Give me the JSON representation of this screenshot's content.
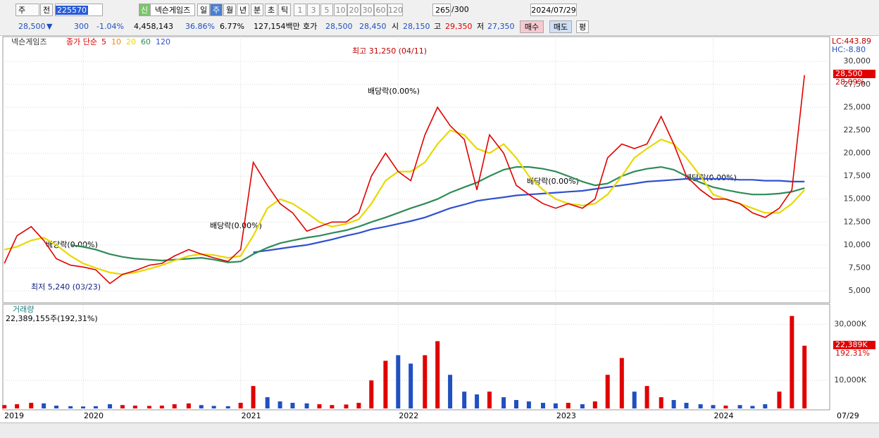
{
  "toolbar": {
    "row1": [
      "주",
      "전",
      "225570",
      "신",
      "넥슨게임즈",
      "일",
      "주",
      "월",
      "년",
      "분",
      "초",
      "틱",
      "1",
      "3",
      "5",
      "10",
      "20",
      "30",
      "60",
      "120",
      "265",
      "/300",
      "2024/07/29"
    ],
    "row2": [
      "28,500",
      "▼",
      "300",
      "-1.04%",
      "4,458,143",
      "36.86%",
      "6.77%",
      "127,154백만",
      "호가",
      "28,500",
      "28,450",
      "시",
      "28,150",
      "고",
      "29,350",
      "저",
      "27,350",
      "매수",
      "매도",
      "평"
    ]
  },
  "chart_data": {
    "type": "line",
    "name": "넥슨게임즈",
    "legend_title": "종가 단순",
    "legend": [
      {
        "name": "5",
        "color": "#e00000"
      },
      {
        "name": "10",
        "color": "#f08a00"
      },
      {
        "name": "20",
        "color": "#e8d800"
      },
      {
        "name": "60",
        "color": "#2e8b57"
      },
      {
        "name": "120",
        "color": "#3050d0"
      }
    ],
    "x": [
      2019.5,
      2019.58,
      2019.67,
      2019.75,
      2019.83,
      2019.92,
      2020.0,
      2020.08,
      2020.17,
      2020.25,
      2020.33,
      2020.42,
      2020.5,
      2020.58,
      2020.67,
      2020.75,
      2020.83,
      2020.92,
      2021.0,
      2021.08,
      2021.17,
      2021.25,
      2021.33,
      2021.42,
      2021.5,
      2021.58,
      2021.67,
      2021.75,
      2021.83,
      2021.92,
      2022.0,
      2022.08,
      2022.17,
      2022.25,
      2022.33,
      2022.42,
      2022.5,
      2022.58,
      2022.67,
      2022.75,
      2022.83,
      2022.92,
      2023.0,
      2023.08,
      2023.17,
      2023.25,
      2023.33,
      2023.42,
      2023.5,
      2023.58,
      2023.67,
      2023.75,
      2023.83,
      2023.92,
      2024.0,
      2024.08,
      2024.17,
      2024.25,
      2024.33,
      2024.42,
      2024.5,
      2024.58
    ],
    "series": [
      {
        "name": "종가",
        "color": "#e00000",
        "values": [
          8000,
          11000,
          12000,
          10500,
          8500,
          7800,
          7600,
          7300,
          5800,
          6800,
          7200,
          7800,
          8000,
          8800,
          9500,
          9000,
          8600,
          8200,
          9500,
          19000,
          16500,
          14500,
          13500,
          11500,
          12000,
          12500,
          12500,
          13500,
          17500,
          20000,
          18000,
          17000,
          22000,
          25000,
          23000,
          21500,
          16000,
          22000,
          20000,
          16500,
          15500,
          14500,
          14000,
          14500,
          14000,
          15000,
          19500,
          21000,
          20500,
          21000,
          24000,
          21000,
          17500,
          16000,
          15000,
          15000,
          14500,
          13500,
          13000,
          14000,
          16000,
          28500
        ]
      },
      {
        "name": "20",
        "color": "#e8d800",
        "values": [
          9500,
          9800,
          10500,
          10800,
          10000,
          8800,
          8000,
          7500,
          7000,
          6800,
          7000,
          7400,
          7800,
          8300,
          8800,
          9000,
          8900,
          8600,
          8800,
          11000,
          14000,
          15000,
          14500,
          13500,
          12500,
          12000,
          12300,
          12800,
          14500,
          17000,
          18000,
          18000,
          19000,
          21000,
          22500,
          22000,
          20500,
          20000,
          21000,
          19500,
          17500,
          16000,
          15000,
          14500,
          14300,
          14500,
          15500,
          17500,
          19500,
          20500,
          21500,
          21000,
          19500,
          17500,
          15500,
          15000,
          14500,
          14000,
          13500,
          13500,
          14500,
          16000
        ]
      },
      {
        "name": "60",
        "color": "#2e8b57",
        "values": [
          null,
          null,
          null,
          null,
          null,
          10000,
          9800,
          9500,
          9000,
          8700,
          8500,
          8400,
          8300,
          8400,
          8500,
          8600,
          8400,
          8100,
          8200,
          9000,
          9700,
          10200,
          10500,
          10800,
          11000,
          11300,
          11600,
          12000,
          12500,
          13000,
          13500,
          14000,
          14500,
          15000,
          15700,
          16300,
          16800,
          17500,
          18200,
          18500,
          18500,
          18300,
          18000,
          17500,
          16900,
          16500,
          16700,
          17500,
          18000,
          18300,
          18500,
          18200,
          17500,
          16800,
          16300,
          16000,
          15700,
          15500,
          15500,
          15600,
          15800,
          16200
        ]
      },
      {
        "name": "120",
        "color": "#3050d0",
        "values": [
          null,
          null,
          null,
          null,
          null,
          null,
          null,
          null,
          null,
          null,
          null,
          null,
          null,
          null,
          null,
          null,
          null,
          null,
          null,
          9200,
          9400,
          9600,
          9800,
          10000,
          10300,
          10600,
          11000,
          11300,
          11700,
          12000,
          12300,
          12600,
          13000,
          13500,
          14000,
          14400,
          14800,
          15000,
          15200,
          15400,
          15500,
          15600,
          15700,
          15800,
          15900,
          16100,
          16300,
          16500,
          16700,
          16900,
          17000,
          17100,
          17200,
          17200,
          17200,
          17200,
          17100,
          17100,
          17000,
          17000,
          16900,
          16900
        ]
      }
    ],
    "ylim": [
      3700,
      32700
    ],
    "yticks": [
      {
        "value": 5000,
        "label": "5,000"
      },
      {
        "value": 7500,
        "label": "7,500"
      },
      {
        "value": 10000,
        "label": "10,000"
      },
      {
        "value": 12500,
        "label": "12,500"
      },
      {
        "value": 15000,
        "label": "15,000"
      },
      {
        "value": 17500,
        "label": "17,500"
      },
      {
        "value": 20000,
        "label": "20,000"
      },
      {
        "value": 22500,
        "label": "22,500"
      },
      {
        "value": 25000,
        "label": "25,000"
      },
      {
        "value": 27500,
        "label": "27,500"
      },
      {
        "value": 30000,
        "label": "30,000"
      }
    ],
    "xlim": [
      2019.49,
      2024.74
    ],
    "xticks": [
      2020,
      2021,
      2022,
      2023,
      2024
    ],
    "first_x_label": "2019",
    "last_x_label": "07/29",
    "volume": {
      "title": "거래량",
      "summary": "22,389,155주(192,31%)",
      "color_up": "#e00000",
      "color_down": "#2050c0",
      "values": [
        1200,
        1500,
        2000,
        1800,
        1000,
        800,
        700,
        800,
        1500,
        1200,
        1000,
        900,
        1000,
        1500,
        1800,
        1200,
        900,
        800,
        2000,
        8000,
        4000,
        2500,
        2000,
        1800,
        1500,
        1200,
        1400,
        2000,
        10000,
        17000,
        19000,
        16000,
        19000,
        24000,
        12000,
        6000,
        5000,
        6000,
        4000,
        3000,
        2500,
        2000,
        1800,
        2000,
        1500,
        2500,
        12000,
        18000,
        6000,
        8000,
        4000,
        3000,
        2000,
        1500,
        1200,
        1000,
        1200,
        900,
        1500,
        6000,
        33000,
        22389
      ],
      "ylim": [
        0,
        37200
      ],
      "yticks": [
        {
          "value": 10000,
          "label": "10,000K"
        },
        {
          "value": 30000,
          "label": "30,000K"
        }
      ]
    },
    "annotations": {
      "high": "최고 31,250 (04/11)",
      "low": "최저 5,240 (03/23)",
      "div1": "배당락(0.00%)",
      "div2": "배당락(0.00%)",
      "div3": "배당락(0.00%)",
      "div4": "배당락(0.00%)",
      "div5": "배당락(0.00%)",
      "lc": "LC:443.89",
      "hc": "HC:-8.80",
      "price_tag": "28,500",
      "price_pct": "28.09%",
      "vol_tag": "22,389K",
      "vol_pct": "192.31%"
    }
  }
}
